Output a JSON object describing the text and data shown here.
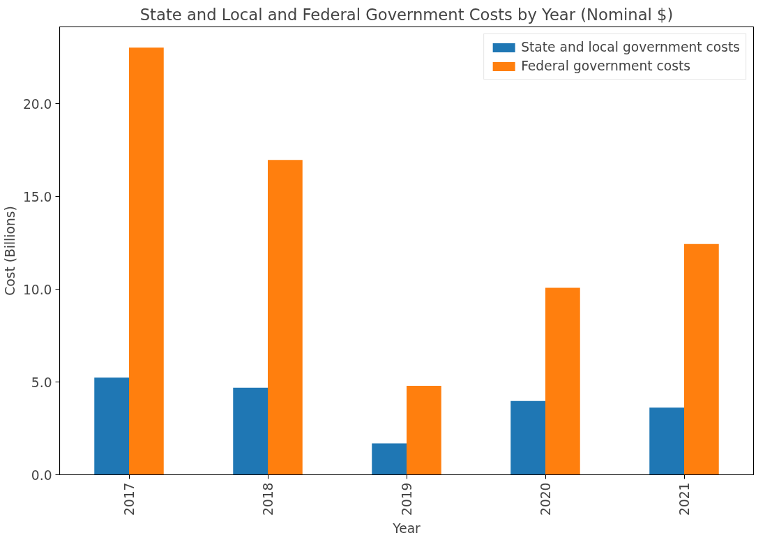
{
  "chart_data": {
    "type": "bar",
    "title": "State and Local and Federal Government Costs by Year (Nominal $)",
    "xlabel": "Year",
    "ylabel": "Cost (Billions)",
    "categories": [
      "2017",
      "2018",
      "2019",
      "2020",
      "2021"
    ],
    "series": [
      {
        "name": "State and local government costs",
        "color": "#1f77b4",
        "values": [
          5.24,
          4.69,
          1.69,
          3.98,
          3.62
        ]
      },
      {
        "name": "Federal government costs",
        "color": "#ff7f0e",
        "values": [
          23.03,
          16.97,
          4.8,
          10.08,
          12.44
        ]
      }
    ],
    "ylim": [
      0,
      24.15
    ],
    "yticks": [
      {
        "value": 0,
        "label": "0.0"
      },
      {
        "value": 5,
        "label": "5.0"
      },
      {
        "value": 10,
        "label": "10.0"
      },
      {
        "value": 15,
        "label": "15.0"
      },
      {
        "value": 20,
        "label": "20.0"
      }
    ],
    "grid": false,
    "legend": "top right"
  }
}
